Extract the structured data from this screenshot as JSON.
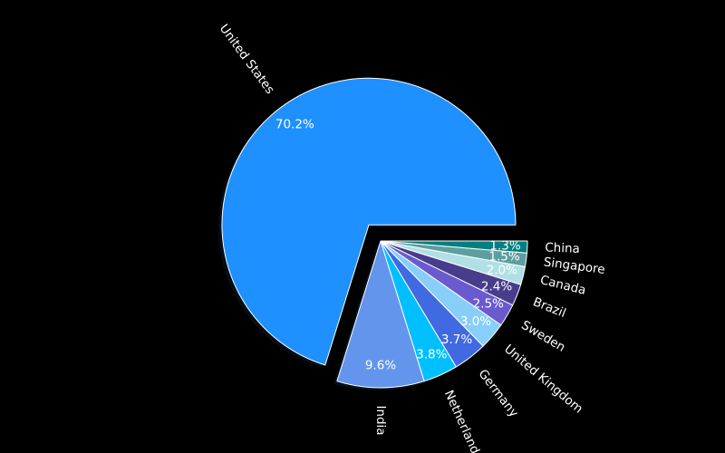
{
  "chart_data": {
    "type": "pie",
    "title": "",
    "slices": [
      {
        "label": "United States",
        "value": 70.2,
        "pct_label": "70.2%",
        "color": "#1E90FF"
      },
      {
        "label": "India",
        "value": 9.6,
        "pct_label": "9.6%",
        "color": "#6495ED"
      },
      {
        "label": "Netherlands",
        "value": 3.8,
        "pct_label": "3.8%",
        "color": "#00BFFF"
      },
      {
        "label": "Germany",
        "value": 3.7,
        "pct_label": "3.7%",
        "color": "#4169E1"
      },
      {
        "label": "United Kingdom",
        "value": 3.0,
        "pct_label": "3.0%",
        "color": "#87CEFA"
      },
      {
        "label": "Sweden",
        "value": 2.5,
        "pct_label": "2.5%",
        "color": "#6A5ACD"
      },
      {
        "label": "Brazil",
        "value": 2.4,
        "pct_label": "2.4%",
        "color": "#483D8B"
      },
      {
        "label": "Canada",
        "value": 2.0,
        "pct_label": "2.0%",
        "color": "#B0E0E6"
      },
      {
        "label": "Singapore",
        "value": 1.5,
        "pct_label": "1.5%",
        "color": "#5F9EA0"
      },
      {
        "label": "China",
        "value": 1.3,
        "pct_label": "1.3%",
        "color": "#008080"
      }
    ],
    "exploded": [
      "United States"
    ],
    "start_angle": 0,
    "direction": "counterclockwise",
    "label_orientation": "rotated",
    "background": "#000000",
    "edge_color": "#FFFFFF",
    "shadow": true
  }
}
